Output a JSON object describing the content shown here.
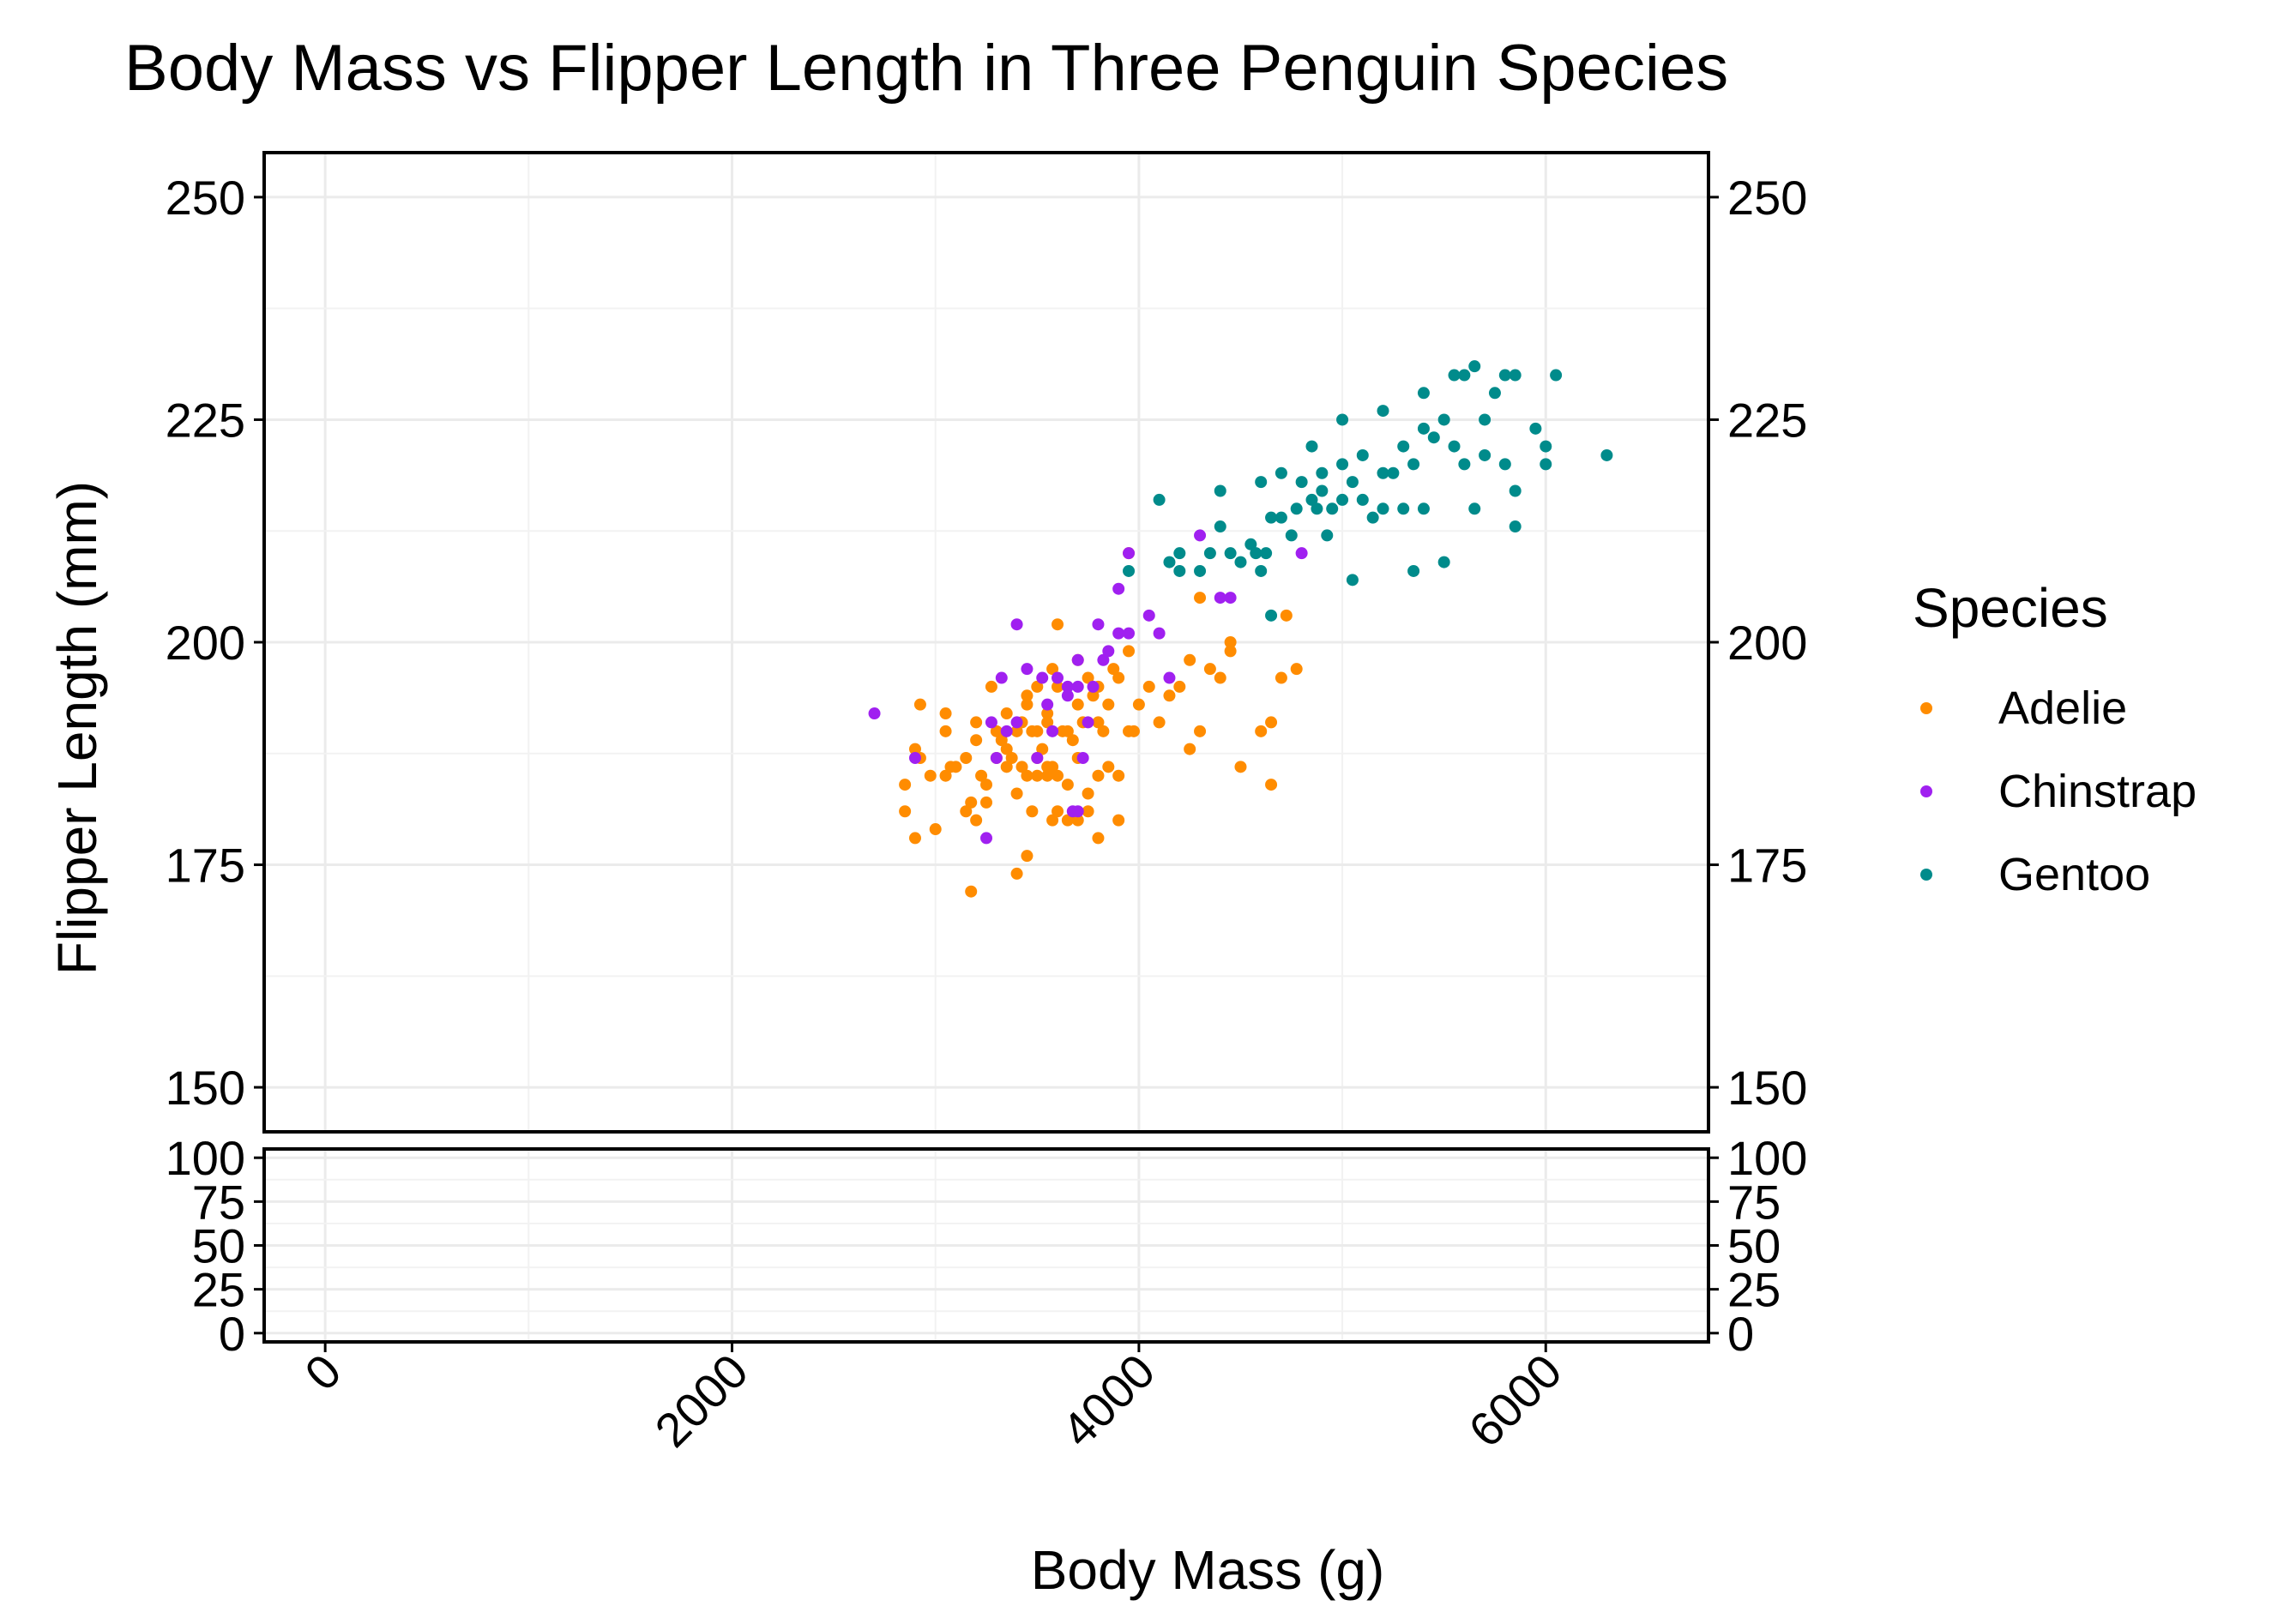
{
  "chart_data": {
    "type": "scatter",
    "title": "Body Mass vs Flipper Length in Three Penguin Species",
    "xlabel": "Body Mass (g)",
    "ylabel": "Flipper Length (mm)",
    "xlim": [
      -300,
      6800
    ],
    "xticks": [
      0,
      2000,
      4000,
      6000
    ],
    "xtick_labels": [
      "0",
      "2000",
      "4000",
      "6000"
    ],
    "ylim": [
      145,
      255
    ],
    "yticks": [
      150,
      175,
      200,
      225,
      250
    ],
    "ytick_labels": [
      "150",
      "175",
      "200",
      "225",
      "250"
    ],
    "bottom_panel": {
      "ylim": [
        -5,
        105
      ],
      "yticks": [
        0,
        25,
        50,
        75,
        100
      ],
      "ytick_labels": [
        "0",
        "25",
        "50",
        "75",
        "100"
      ]
    },
    "grid": true,
    "secondary_y_axis": "right, duplicated",
    "legend": {
      "title": "Species",
      "position": "right"
    },
    "series": [
      {
        "name": "Adelie",
        "color": "#ff8c00",
        "points": [
          [
            2850,
            181
          ],
          [
            2850,
            184
          ],
          [
            2900,
            178
          ],
          [
            2900,
            188
          ],
          [
            2925,
            187
          ],
          [
            2925,
            193
          ],
          [
            2975,
            185
          ],
          [
            3000,
            179
          ],
          [
            3050,
            185
          ],
          [
            3050,
            190
          ],
          [
            3050,
            192
          ],
          [
            3075,
            186
          ],
          [
            3100,
            186
          ],
          [
            3150,
            187
          ],
          [
            3150,
            181
          ],
          [
            3175,
            182
          ],
          [
            3175,
            172
          ],
          [
            3200,
            180
          ],
          [
            3200,
            189
          ],
          [
            3200,
            191
          ],
          [
            3225,
            185
          ],
          [
            3250,
            182
          ],
          [
            3250,
            184
          ],
          [
            3275,
            195
          ],
          [
            3300,
            187
          ],
          [
            3300,
            190
          ],
          [
            3325,
            189
          ],
          [
            3350,
            188
          ],
          [
            3350,
            192
          ],
          [
            3350,
            186
          ],
          [
            3375,
            187
          ],
          [
            3400,
            190
          ],
          [
            3400,
            183
          ],
          [
            3400,
            174
          ],
          [
            3425,
            191
          ],
          [
            3425,
            186
          ],
          [
            3450,
            176
          ],
          [
            3450,
            193
          ],
          [
            3450,
            194
          ],
          [
            3450,
            185
          ],
          [
            3475,
            181
          ],
          [
            3475,
            190
          ],
          [
            3500,
            187
          ],
          [
            3500,
            190
          ],
          [
            3500,
            195
          ],
          [
            3500,
            185
          ],
          [
            3525,
            188
          ],
          [
            3550,
            186
          ],
          [
            3550,
            192
          ],
          [
            3550,
            191
          ],
          [
            3550,
            185
          ],
          [
            3575,
            180
          ],
          [
            3575,
            197
          ],
          [
            3600,
            185
          ],
          [
            3600,
            195
          ],
          [
            3600,
            202
          ],
          [
            3600,
            181
          ],
          [
            3625,
            190
          ],
          [
            3650,
            180
          ],
          [
            3650,
            190
          ],
          [
            3650,
            184
          ],
          [
            3675,
            189
          ],
          [
            3700,
            187
          ],
          [
            3700,
            193
          ],
          [
            3700,
            198
          ],
          [
            3700,
            180
          ],
          [
            3725,
            191
          ],
          [
            3750,
            183
          ],
          [
            3750,
            196
          ],
          [
            3750,
            181
          ],
          [
            3775,
            194
          ],
          [
            3800,
            185
          ],
          [
            3800,
            191
          ],
          [
            3800,
            195
          ],
          [
            3800,
            178
          ],
          [
            3825,
            190
          ],
          [
            3850,
            186
          ],
          [
            3850,
            193
          ],
          [
            3875,
            197
          ],
          [
            3900,
            180
          ],
          [
            3900,
            196
          ],
          [
            3900,
            185
          ],
          [
            3950,
            190
          ],
          [
            3950,
            199
          ],
          [
            3975,
            190
          ],
          [
            4000,
            193
          ],
          [
            4050,
            195
          ],
          [
            4100,
            191
          ],
          [
            4150,
            194
          ],
          [
            4200,
            195
          ],
          [
            4250,
            188
          ],
          [
            4250,
            198
          ],
          [
            4300,
            190
          ],
          [
            4300,
            205
          ],
          [
            4350,
            197
          ],
          [
            4400,
            196
          ],
          [
            4450,
            200
          ],
          [
            4450,
            199
          ],
          [
            4500,
            186
          ],
          [
            4600,
            190
          ],
          [
            4650,
            191
          ],
          [
            4650,
            184
          ],
          [
            4700,
            196
          ],
          [
            4725,
            203
          ],
          [
            4775,
            197
          ],
          [
            3950,
            210
          ],
          [
            3575,
            186
          ]
        ]
      },
      {
        "name": "Chinstrap",
        "color": "#a020f0",
        "points": [
          [
            2700,
            192
          ],
          [
            2900,
            187
          ],
          [
            3250,
            178
          ],
          [
            3275,
            191
          ],
          [
            3300,
            187
          ],
          [
            3325,
            196
          ],
          [
            3350,
            190
          ],
          [
            3400,
            191
          ],
          [
            3400,
            202
          ],
          [
            3450,
            197
          ],
          [
            3500,
            187
          ],
          [
            3525,
            196
          ],
          [
            3550,
            193
          ],
          [
            3575,
            190
          ],
          [
            3600,
            196
          ],
          [
            3650,
            194
          ],
          [
            3650,
            195
          ],
          [
            3675,
            181
          ],
          [
            3700,
            198
          ],
          [
            3700,
            195
          ],
          [
            3725,
            187
          ],
          [
            3750,
            191
          ],
          [
            3775,
            195
          ],
          [
            3800,
            202
          ],
          [
            3825,
            198
          ],
          [
            3850,
            199
          ],
          [
            3900,
            201
          ],
          [
            3900,
            206
          ],
          [
            3950,
            201
          ],
          [
            3950,
            210
          ],
          [
            4050,
            203
          ],
          [
            4100,
            201
          ],
          [
            4150,
            196
          ],
          [
            4300,
            212
          ],
          [
            4400,
            205
          ],
          [
            4450,
            205
          ],
          [
            4800,
            210
          ],
          [
            3700,
            181
          ]
        ]
      },
      {
        "name": "Gentoo",
        "color": "#008b8b",
        "points": [
          [
            3950,
            208
          ],
          [
            4100,
            216
          ],
          [
            4150,
            209
          ],
          [
            4200,
            210
          ],
          [
            4200,
            208
          ],
          [
            4300,
            208
          ],
          [
            4350,
            210
          ],
          [
            4400,
            213
          ],
          [
            4400,
            217
          ],
          [
            4450,
            210
          ],
          [
            4500,
            209
          ],
          [
            4550,
            211
          ],
          [
            4575,
            210
          ],
          [
            4600,
            218
          ],
          [
            4600,
            208
          ],
          [
            4625,
            210
          ],
          [
            4650,
            203
          ],
          [
            4650,
            214
          ],
          [
            4700,
            214
          ],
          [
            4700,
            219
          ],
          [
            4750,
            212
          ],
          [
            4775,
            215
          ],
          [
            4800,
            218
          ],
          [
            4850,
            216
          ],
          [
            4850,
            222
          ],
          [
            4875,
            215
          ],
          [
            4900,
            217
          ],
          [
            4900,
            219
          ],
          [
            4925,
            212
          ],
          [
            4950,
            215
          ],
          [
            5000,
            220
          ],
          [
            5000,
            216
          ],
          [
            5000,
            225
          ],
          [
            5050,
            218
          ],
          [
            5050,
            207
          ],
          [
            5100,
            221
          ],
          [
            5100,
            216
          ],
          [
            5150,
            214
          ],
          [
            5200,
            215
          ],
          [
            5200,
            219
          ],
          [
            5200,
            226
          ],
          [
            5250,
            219
          ],
          [
            5300,
            215
          ],
          [
            5300,
            222
          ],
          [
            5350,
            220
          ],
          [
            5350,
            208
          ],
          [
            5400,
            224
          ],
          [
            5400,
            215
          ],
          [
            5400,
            228
          ],
          [
            5450,
            223
          ],
          [
            5500,
            225
          ],
          [
            5500,
            209
          ],
          [
            5550,
            230
          ],
          [
            5550,
            222
          ],
          [
            5600,
            220
          ],
          [
            5600,
            230
          ],
          [
            5650,
            231
          ],
          [
            5650,
            215
          ],
          [
            5700,
            225
          ],
          [
            5700,
            221
          ],
          [
            5750,
            228
          ],
          [
            5800,
            230
          ],
          [
            5800,
            220
          ],
          [
            5850,
            213
          ],
          [
            5850,
            217
          ],
          [
            5850,
            230
          ],
          [
            5950,
            224
          ],
          [
            6000,
            220
          ],
          [
            6000,
            222
          ],
          [
            6050,
            230
          ],
          [
            6300,
            221
          ]
        ]
      }
    ]
  }
}
